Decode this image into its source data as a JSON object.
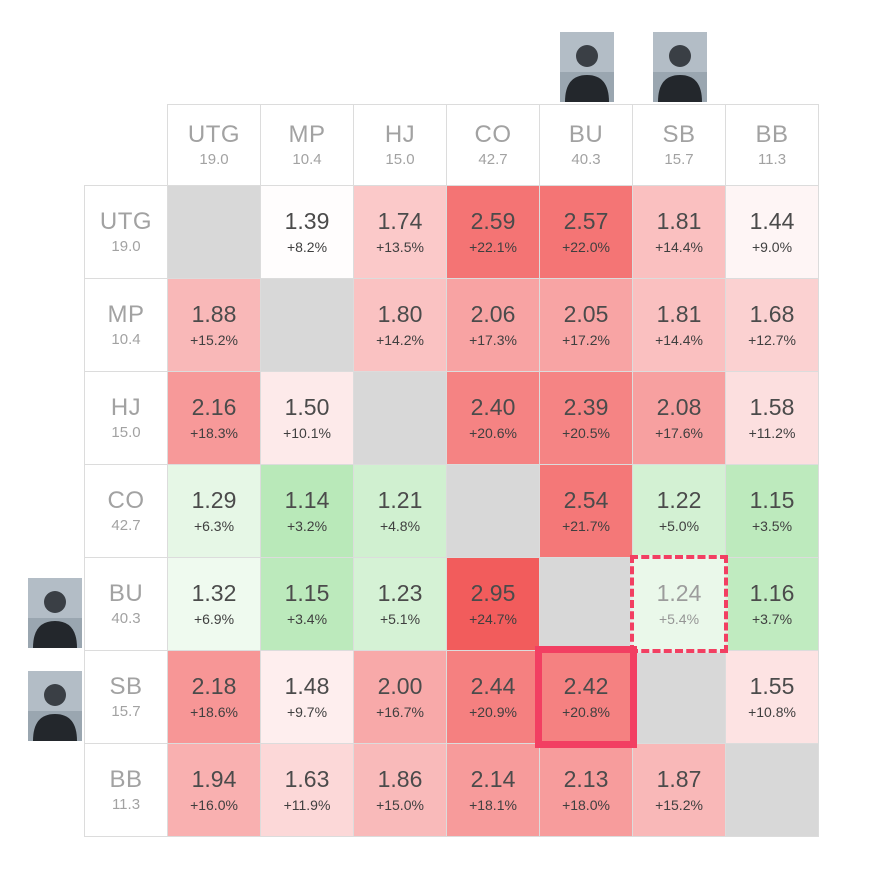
{
  "chart_data": {
    "type": "heatmap",
    "positions": [
      {
        "label": "UTG",
        "stack": "19.0"
      },
      {
        "label": "MP",
        "stack": "10.4"
      },
      {
        "label": "HJ",
        "stack": "15.0"
      },
      {
        "label": "CO",
        "stack": "42.7"
      },
      {
        "label": "BU",
        "stack": "40.3"
      },
      {
        "label": "SB",
        "stack": "15.7"
      },
      {
        "label": "BB",
        "stack": "11.3"
      }
    ],
    "rows": [
      {
        "pos": "UTG",
        "cells": [
          null,
          {
            "ev": "1.39",
            "pct": "+8.2%"
          },
          {
            "ev": "1.74",
            "pct": "+13.5%"
          },
          {
            "ev": "2.59",
            "pct": "+22.1%"
          },
          {
            "ev": "2.57",
            "pct": "+22.0%"
          },
          {
            "ev": "1.81",
            "pct": "+14.4%"
          },
          {
            "ev": "1.44",
            "pct": "+9.0%"
          }
        ]
      },
      {
        "pos": "MP",
        "cells": [
          {
            "ev": "1.88",
            "pct": "+15.2%"
          },
          null,
          {
            "ev": "1.80",
            "pct": "+14.2%"
          },
          {
            "ev": "2.06",
            "pct": "+17.3%"
          },
          {
            "ev": "2.05",
            "pct": "+17.2%"
          },
          {
            "ev": "1.81",
            "pct": "+14.4%"
          },
          {
            "ev": "1.68",
            "pct": "+12.7%"
          }
        ]
      },
      {
        "pos": "HJ",
        "cells": [
          {
            "ev": "2.16",
            "pct": "+18.3%"
          },
          {
            "ev": "1.50",
            "pct": "+10.1%"
          },
          null,
          {
            "ev": "2.40",
            "pct": "+20.6%"
          },
          {
            "ev": "2.39",
            "pct": "+20.5%"
          },
          {
            "ev": "2.08",
            "pct": "+17.6%"
          },
          {
            "ev": "1.58",
            "pct": "+11.2%"
          }
        ]
      },
      {
        "pos": "CO",
        "cells": [
          {
            "ev": "1.29",
            "pct": "+6.3%"
          },
          {
            "ev": "1.14",
            "pct": "+3.2%"
          },
          {
            "ev": "1.21",
            "pct": "+4.8%"
          },
          null,
          {
            "ev": "2.54",
            "pct": "+21.7%"
          },
          {
            "ev": "1.22",
            "pct": "+5.0%"
          },
          {
            "ev": "1.15",
            "pct": "+3.5%"
          }
        ]
      },
      {
        "pos": "BU",
        "cells": [
          {
            "ev": "1.32",
            "pct": "+6.9%"
          },
          {
            "ev": "1.15",
            "pct": "+3.4%"
          },
          {
            "ev": "1.23",
            "pct": "+5.1%"
          },
          {
            "ev": "2.95",
            "pct": "+24.7%"
          },
          null,
          {
            "ev": "1.24",
            "pct": "+5.4%"
          },
          {
            "ev": "1.16",
            "pct": "+3.7%"
          }
        ]
      },
      {
        "pos": "SB",
        "cells": [
          {
            "ev": "2.18",
            "pct": "+18.6%"
          },
          {
            "ev": "1.48",
            "pct": "+9.7%"
          },
          {
            "ev": "2.00",
            "pct": "+16.7%"
          },
          {
            "ev": "2.44",
            "pct": "+20.9%"
          },
          {
            "ev": "2.42",
            "pct": "+20.8%"
          },
          null,
          {
            "ev": "1.55",
            "pct": "+10.8%"
          }
        ]
      },
      {
        "pos": "BB",
        "cells": [
          {
            "ev": "1.94",
            "pct": "+16.0%"
          },
          {
            "ev": "1.63",
            "pct": "+11.9%"
          },
          {
            "ev": "1.86",
            "pct": "+15.0%"
          },
          {
            "ev": "2.14",
            "pct": "+18.1%"
          },
          {
            "ev": "2.13",
            "pct": "+18.0%"
          },
          {
            "ev": "1.87",
            "pct": "+15.2%"
          },
          null
        ]
      }
    ],
    "selection": {
      "solid_highlight": {
        "row": "SB",
        "col": "BU"
      },
      "dashed_highlight": {
        "row": "BU",
        "col": "SB"
      }
    },
    "avatars": {
      "columns": [
        "BU",
        "SB"
      ],
      "rows": [
        "BU",
        "SB"
      ]
    },
    "color_scale": {
      "neutral_pct": 8,
      "green_span": 5,
      "red_span": 16.5
    },
    "colors": {
      "diagonal": "#d8d8d8",
      "grid_line": "#dcdcdc",
      "highlight": "#f23f62",
      "green_max": "#b6e8b6",
      "red_max": "#f25c5c",
      "header_text": "#a2a2a2",
      "value_text": "#4b4b4b"
    }
  }
}
